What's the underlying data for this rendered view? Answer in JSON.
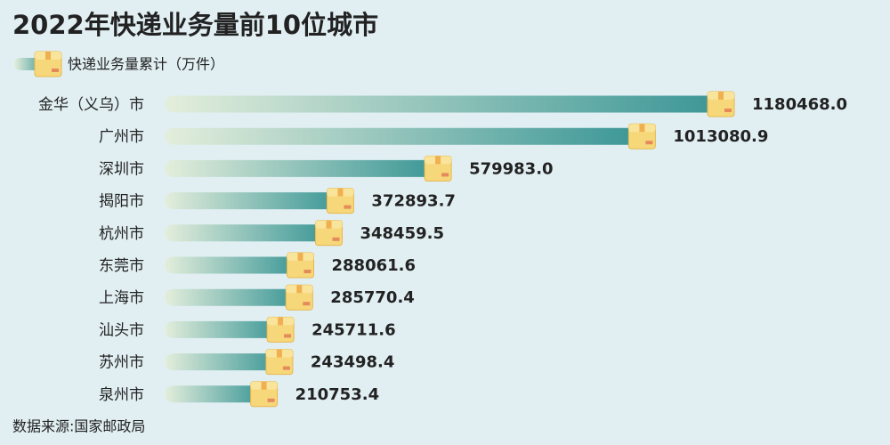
{
  "chart_data": {
    "type": "bar",
    "orientation": "horizontal",
    "title": "2022年快递业务量前10位城市",
    "source": "数据来源:国家邮政局",
    "categories": [
      "金华（义乌）市",
      "广州市",
      "深圳市",
      "揭阳市",
      "杭州市",
      "东莞市",
      "上海市",
      "汕头市",
      "苏州市",
      "泉州市"
    ],
    "series": [
      {
        "name": "快递业务量累计（万件）",
        "gradient": [
          "#e4eedc",
          "#3a9696"
        ],
        "values": [
          1180468.0,
          1013080.9,
          579983.0,
          372893.7,
          348459.5,
          288061.6,
          285770.4,
          245711.6,
          243498.4,
          210753.4
        ],
        "value_labels": [
          "1180468.0",
          "1013080.9",
          "579983.0",
          "372893.7",
          "348459.5",
          "288061.6",
          "285770.4",
          "245711.6",
          "243498.4",
          "210753.4"
        ]
      }
    ]
  }
}
